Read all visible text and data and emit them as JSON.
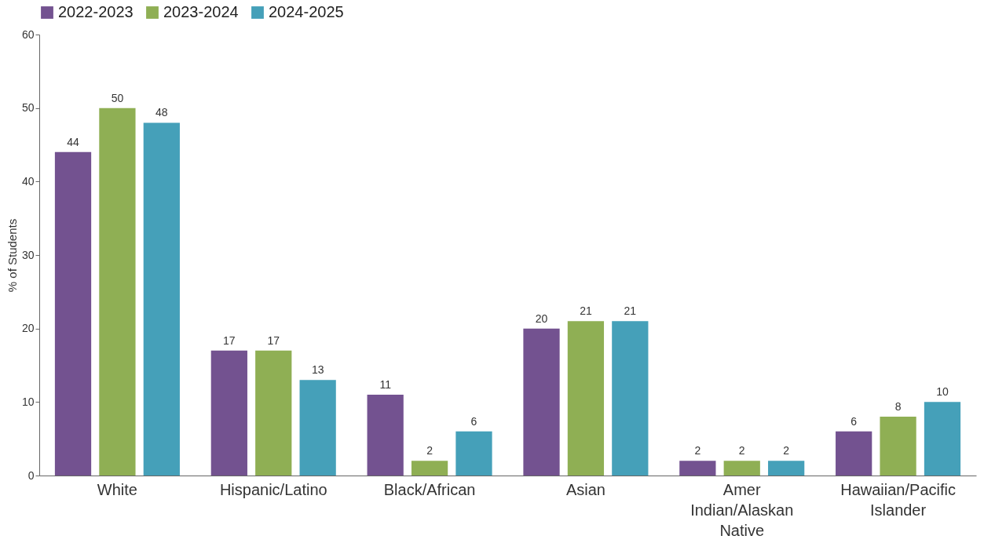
{
  "chart_data": {
    "type": "bar",
    "ylabel": "% of Students",
    "categories": [
      "White",
      "Hispanic/Latino",
      "Black/African",
      "Asian",
      "Amer Indian/Alaskan Native",
      "Hawaiian/Pacific Islander"
    ],
    "series": [
      {
        "name": "2022-2023",
        "color": "#735290",
        "values": [
          44,
          17,
          11,
          20,
          2,
          6
        ]
      },
      {
        "name": "2023-2024",
        "color": "#8faf54",
        "values": [
          50,
          17,
          2,
          21,
          2,
          8
        ]
      },
      {
        "name": "2024-2025",
        "color": "#45a0b9",
        "values": [
          48,
          13,
          6,
          21,
          2,
          10
        ]
      }
    ],
    "ylim": [
      0,
      60
    ],
    "yticks": [
      0,
      10,
      20,
      30,
      40,
      50,
      60
    ],
    "grid": false,
    "legend": "top",
    "data_labels": true
  }
}
